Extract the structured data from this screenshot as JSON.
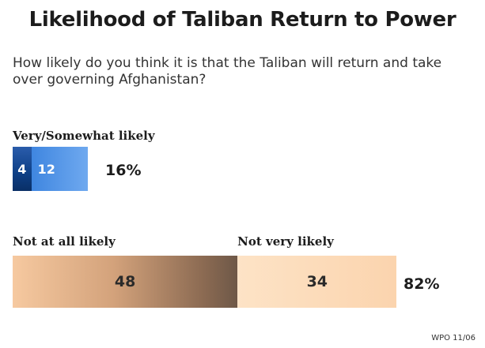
{
  "title": "Likelihood of Taliban Return to Power",
  "question": "How likely do you think it is that the Taliban will return and take over governing Afghanistan?",
  "source": "WPO 11/06",
  "colors": {
    "very_likely": "#0d3f86",
    "somewhat_likely": "#3f86e0",
    "not_at_all_likely": "#a57a5a",
    "not_very_likely": "#fbd4ae"
  },
  "chart_data": {
    "type": "bar",
    "title": "Likelihood of Taliban Return to Power",
    "groups": [
      {
        "label": "Very/Somewhat likely",
        "total_label": "16%",
        "segments": [
          {
            "value": 4,
            "label": "4"
          },
          {
            "value": 12,
            "label": "12"
          }
        ]
      },
      {
        "label": "",
        "total_label": "82%",
        "segments": [
          {
            "value": 48,
            "label": "48",
            "name": "Not at all likely"
          },
          {
            "value": 34,
            "label": "34",
            "name": "Not very likely"
          }
        ]
      }
    ]
  }
}
